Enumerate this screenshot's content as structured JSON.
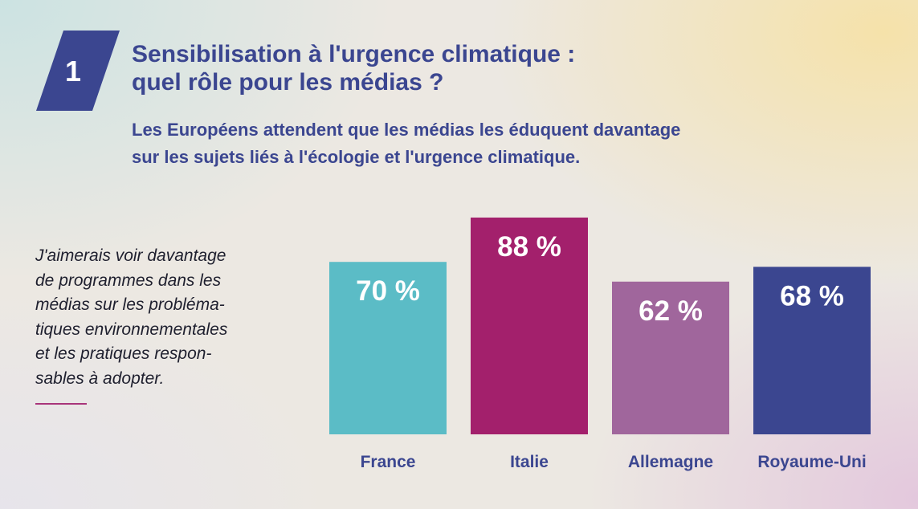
{
  "badge": {
    "number": "1",
    "color": "#3b4690"
  },
  "header": {
    "title_line1": "Sensibilisation à l'urgence climatique :",
    "title_line2": "quel rôle pour les médias ?",
    "subtitle_line1": "Les Européens attendent que les médias les éduquent davantage",
    "subtitle_line2": "sur les sujets liés à l'écologie et l'urgence climatique."
  },
  "quote": {
    "lines": [
      "J'aimerais voir davantage",
      "de programmes dans les",
      "médias sur les probléma-",
      "tiques environnementales",
      "et les pratiques respon-",
      "sables à adopter."
    ],
    "rule_color": "#a8347a"
  },
  "chart_data": {
    "type": "bar",
    "categories": [
      "France",
      "Italie",
      "Allemagne",
      "Royaume-Uni"
    ],
    "values": [
      70,
      88,
      62,
      68
    ],
    "value_labels": [
      "70 %",
      "88 %",
      "62 %",
      "68 %"
    ],
    "colors": [
      "#5bbcc6",
      "#a3206c",
      "#a0669c",
      "#3b4690"
    ],
    "unit": "%",
    "ylim": [
      0,
      88
    ],
    "grid": false,
    "legend": "none"
  }
}
